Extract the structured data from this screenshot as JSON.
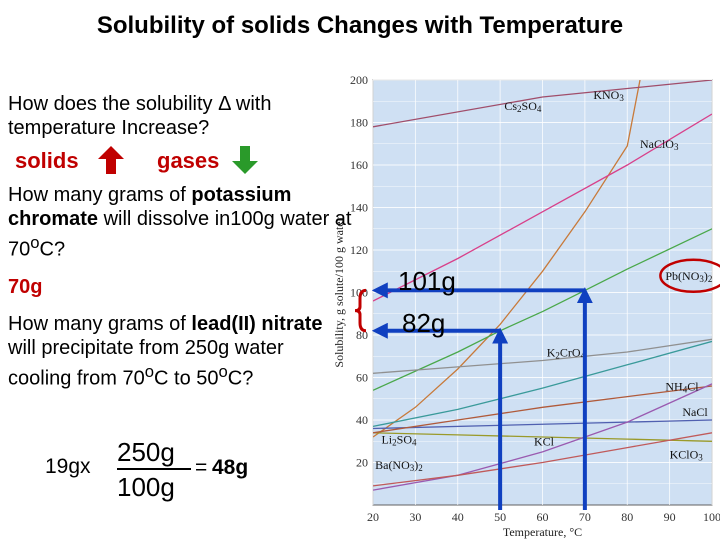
{
  "title": "Solubility of solids Changes with Temperature",
  "question1": "How does the solubility Δ with temperature Increase?",
  "solids_label": "solids",
  "gases_label": "gases",
  "question2_parts": {
    "a": "How many grams of ",
    "b": "potassium chromate",
    "c": " will dissolve in100g water at 70",
    "sup": "o",
    "d": "C?"
  },
  "answer1": "70g",
  "question3_parts": {
    "a": "How many grams of ",
    "b": "lead(II) nitrate",
    "c": " will precipitate from 250g water cooling from 70",
    "sup1": "o",
    "d": "C to 50",
    "sup2": "o",
    "e": "C?"
  },
  "equation": {
    "coef": "19gx",
    "numerator": "250g",
    "denominator": "100g",
    "equals": "=",
    "result": "48g"
  },
  "readout_high": "101g",
  "readout_low": "82g",
  "colors": {
    "plot_bg": "#cfe0f3",
    "grid": "#ffffff",
    "arrow_blue": "#1040c0",
    "red": "#c00000",
    "arrow_green": "#2a9a2a"
  },
  "chart_data": {
    "type": "line",
    "title": "",
    "xlabel": "Temperature, °C",
    "ylabel": "Solubility, g solute/100 g water",
    "xlim": [
      20,
      100
    ],
    "ylim": [
      0,
      200
    ],
    "xticks": [
      20,
      30,
      40,
      50,
      60,
      70,
      80,
      90,
      100
    ],
    "yticks": [
      20,
      40,
      60,
      80,
      100,
      120,
      140,
      160,
      180,
      200
    ],
    "grid": true,
    "series": [
      {
        "name": "KNO3",
        "color": "#c87a3a",
        "x": [
          20,
          30,
          40,
          50,
          60,
          70,
          80,
          83
        ],
        "y": [
          32,
          46,
          64,
          85,
          110,
          138,
          169,
          200
        ]
      },
      {
        "name": "NaClO3",
        "color": "#d8408a",
        "x": [
          20,
          40,
          60,
          80,
          100
        ],
        "y": [
          96,
          116,
          138,
          160,
          184
        ]
      },
      {
        "name": "Cs2SO4",
        "color": "#a04d6a",
        "x": [
          20,
          60,
          100
        ],
        "y": [
          178,
          192,
          200
        ]
      },
      {
        "name": "Pb(NO3)2",
        "color": "#4aa84a",
        "x": [
          20,
          40,
          50,
          60,
          70,
          80,
          100
        ],
        "y": [
          54,
          72,
          82,
          91,
          101,
          111,
          130
        ]
      },
      {
        "name": "K2CrO4",
        "color": "#909090",
        "x": [
          20,
          40,
          60,
          80,
          100
        ],
        "y": [
          62,
          65,
          68,
          72,
          78
        ]
      },
      {
        "name": "NH4Cl",
        "color": "#3a9a9a",
        "x": [
          20,
          40,
          60,
          80,
          100
        ],
        "y": [
          37,
          45,
          55,
          66,
          77
        ]
      },
      {
        "name": "NaCl",
        "color": "#5060b0",
        "x": [
          20,
          100
        ],
        "y": [
          36,
          40
        ]
      },
      {
        "name": "Li2SO4",
        "color": "#9a9a2a",
        "x": [
          20,
          40,
          60,
          80,
          100
        ],
        "y": [
          34,
          33,
          32,
          31,
          30
        ]
      },
      {
        "name": "KCl",
        "color": "#b05a3a",
        "x": [
          20,
          40,
          60,
          80,
          100
        ],
        "y": [
          34,
          40,
          46,
          51,
          56
        ]
      },
      {
        "name": "KClO3",
        "color": "#9a5ab0",
        "x": [
          20,
          40,
          60,
          80,
          100
        ],
        "y": [
          7,
          14,
          25,
          39,
          57
        ]
      },
      {
        "name": "Ba(NO3)2",
        "color": "#c05a5a",
        "x": [
          20,
          40,
          60,
          80,
          100
        ],
        "y": [
          9,
          14,
          20,
          27,
          34
        ]
      }
    ],
    "labels": [
      {
        "name": "Cs2SO4",
        "base": "Cs",
        "sub1": "2",
        "mid": "SO",
        "sub2": "4",
        "x": 51,
        "y": 186
      },
      {
        "name": "KNO3",
        "base": "KNO",
        "sub1": "3",
        "mid": "",
        "sub2": "",
        "x": 72,
        "y": 191
      },
      {
        "name": "NaClO3",
        "base": "NaClO",
        "sub1": "3",
        "mid": "",
        "sub2": "",
        "x": 83,
        "y": 168
      },
      {
        "name": "Pb(NO3)2",
        "base": "Pb(NO",
        "sub1": "3",
        "mid": ")",
        "sub2": "2",
        "x": 89,
        "y": 106
      },
      {
        "name": "K2CrO4",
        "base": "K",
        "sub1": "2",
        "mid": "CrO",
        "sub2": "4",
        "x": 61,
        "y": 70
      },
      {
        "name": "NH4Cl",
        "base": "NH",
        "sub1": "4",
        "mid": "Cl",
        "sub2": "",
        "x": 89,
        "y": 54
      },
      {
        "name": "NaCl",
        "base": "NaCl",
        "sub1": "",
        "mid": "",
        "sub2": "",
        "x": 93,
        "y": 42
      },
      {
        "name": "Li2SO4",
        "base": "Li",
        "sub1": "2",
        "mid": "SO",
        "sub2": "4",
        "x": 22,
        "y": 29
      },
      {
        "name": "KCl",
        "base": "KCl",
        "sub1": "",
        "mid": "",
        "sub2": "",
        "x": 58,
        "y": 28
      },
      {
        "name": "KClO3",
        "base": "KClO",
        "sub1": "3",
        "mid": "",
        "sub2": "",
        "x": 90,
        "y": 22
      },
      {
        "name": "Ba(NO3)2",
        "base": "Ba(NO",
        "sub1": "3",
        "mid": ")",
        "sub2": "2",
        "x": 20.5,
        "y": 17
      }
    ],
    "annotations": {
      "vertical_arrows_x": [
        50,
        70
      ],
      "horizontal_arrow_y": [
        101,
        82
      ],
      "circled_label": "Pb(NO3)2"
    }
  }
}
